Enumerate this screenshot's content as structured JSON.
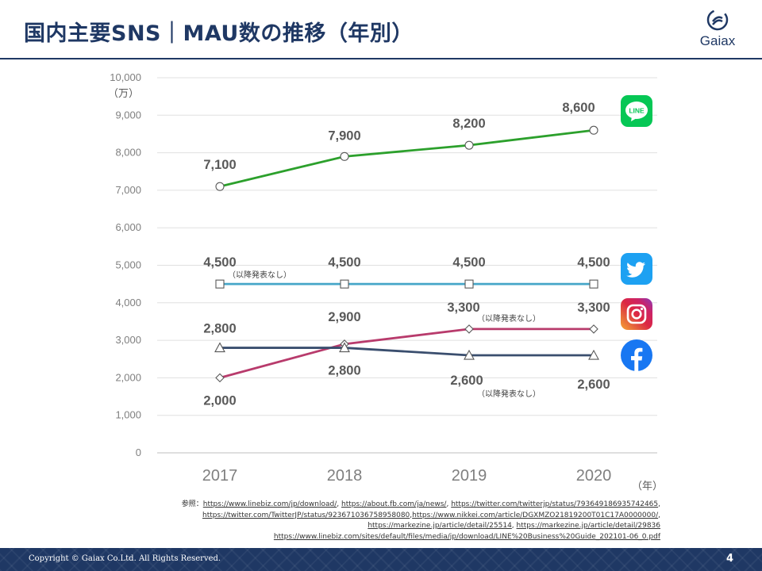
{
  "header": {
    "title": "国内主要SNS｜MAU数の推移（年別）",
    "logo_text": "Gaiax"
  },
  "chart_data": {
    "type": "line",
    "title": "国内主要SNS｜MAU数の推移（年別）",
    "x": [
      "2017",
      "2018",
      "2019",
      "2020"
    ],
    "y_unit_label": "（万）",
    "x_unit_label": "（年）",
    "ylim": [
      0,
      10000
    ],
    "yticks": [
      0,
      1000,
      2000,
      3000,
      4000,
      5000,
      6000,
      7000,
      8000,
      9000,
      10000
    ],
    "ytick_labels": [
      "0",
      "1,000",
      "2,000",
      "3,000",
      "4,000",
      "5,000",
      "6,000",
      "7,000",
      "8,000",
      "9,000",
      "10,000"
    ],
    "grid": true,
    "legend": "icons-right",
    "series": [
      {
        "values": [
          7100,
          7900,
          8200,
          8600
        ],
        "labels": [
          "7,100",
          "7,900",
          "8,200",
          "8,600"
        ],
        "color": "#2ca02c",
        "marker": "circle",
        "icon": "line-icon"
      },
      {
        "values": [
          4500,
          4500,
          4500,
          4500
        ],
        "labels": [
          "4,500",
          "4,500",
          "4,500",
          "4,500"
        ],
        "color": "#46a6c8",
        "marker": "square",
        "icon": "twitter-icon"
      },
      {
        "values": [
          2000,
          2900,
          3300,
          3300
        ],
        "labels": [
          "2,000",
          "2,900",
          "3,300",
          "3,300"
        ],
        "color": "#b83b6c",
        "marker": "diamond",
        "icon": "instagram-icon"
      },
      {
        "values": [
          2800,
          2800,
          2600,
          2600
        ],
        "labels": [
          "2,800",
          "2,800",
          "2,600",
          "2,600"
        ],
        "color": "#3a4e6e",
        "marker": "triangle",
        "icon": "facebook-icon"
      }
    ],
    "annotations": [
      {
        "text": "（以降発表なし）",
        "series": 1,
        "index": 0
      },
      {
        "text": "（以降発表なし）",
        "series": 2,
        "index": 2
      },
      {
        "text": "（以降発表なし）",
        "series": 3,
        "index": 2
      }
    ],
    "icon_label": "LINE"
  },
  "references": {
    "prefix": "参照：",
    "links": [
      "https://www.linebiz.com/jp/download/",
      "https://about.fb.com/ja/news/",
      "https://twitter.com/twitterjp/status/793649186935742465",
      "https://twitter.com/TwitterJP/status/923671036758958080",
      "https://www.nikkei.com/article/DGXMZO21819200T01C17A0000000/",
      "https://markezine.jp/article/detail/25514",
      "https://markezine.jp/article/detail/29836",
      "https://www.linebiz.com/sites/default/files/media/jp/download/LINE%20Business%20Guide_202101-06_0.pdf"
    ]
  },
  "footer": {
    "copyright": "Copyright © Gaiax Co.Ltd. All Rights Reserved.",
    "page_number": "4"
  }
}
